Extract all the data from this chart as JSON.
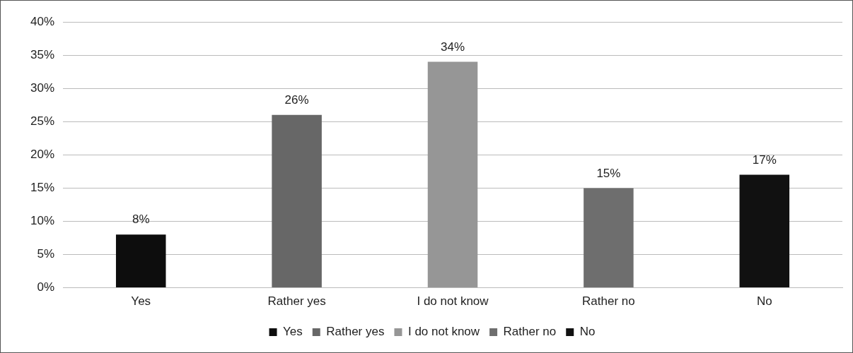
{
  "chart_data": {
    "type": "bar",
    "categories": [
      "Yes",
      "Rather yes",
      "I do not know",
      "Rather no",
      "No"
    ],
    "series": [
      {
        "name": "Yes",
        "color": "#0d0d0d",
        "values": [
          8,
          null,
          null,
          null,
          null
        ],
        "value_labels": [
          "8%",
          null,
          null,
          null,
          null
        ]
      },
      {
        "name": "Rather yes",
        "color": "#676767",
        "values": [
          null,
          26,
          null,
          null,
          null
        ],
        "value_labels": [
          null,
          "26%",
          null,
          null,
          null
        ]
      },
      {
        "name": "I do not know",
        "color": "#969696",
        "values": [
          null,
          null,
          34,
          null,
          null
        ],
        "value_labels": [
          null,
          null,
          "34%",
          null,
          null
        ]
      },
      {
        "name": "Rather no",
        "color": "#6e6e6e",
        "values": [
          null,
          null,
          null,
          15,
          null
        ],
        "value_labels": [
          null,
          null,
          null,
          "15%",
          null
        ]
      },
      {
        "name": "No",
        "color": "#111111",
        "values": [
          null,
          null,
          null,
          null,
          17
        ],
        "value_labels": [
          null,
          null,
          null,
          null,
          "17%"
        ]
      }
    ],
    "ylim": [
      0,
      40
    ],
    "yticks": [
      {
        "value": 0,
        "label": "0%"
      },
      {
        "value": 5,
        "label": "5%"
      },
      {
        "value": 10,
        "label": "10%"
      },
      {
        "value": 15,
        "label": "15%"
      },
      {
        "value": 20,
        "label": "20%"
      },
      {
        "value": 25,
        "label": "25%"
      },
      {
        "value": 30,
        "label": "30%"
      },
      {
        "value": 35,
        "label": "35%"
      },
      {
        "value": 40,
        "label": "40%"
      }
    ],
    "grid": "y",
    "legend": "bottom"
  }
}
